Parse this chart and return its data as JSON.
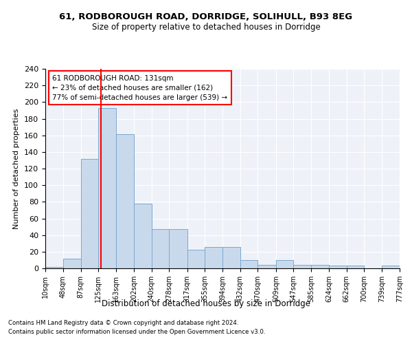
{
  "title1": "61, RODBOROUGH ROAD, DORRIDGE, SOLIHULL, B93 8EG",
  "title2": "Size of property relative to detached houses in Dorridge",
  "xlabel": "Distribution of detached houses by size in Dorridge",
  "ylabel": "Number of detached properties",
  "bar_values": [
    2,
    12,
    132,
    193,
    161,
    78,
    47,
    47,
    22,
    26,
    26,
    10,
    4,
    10,
    4,
    4,
    3,
    3,
    0,
    3
  ],
  "bin_edges": [
    10,
    48,
    87,
    125,
    163,
    202,
    240,
    278,
    317,
    355,
    394,
    432,
    470,
    509,
    547,
    585,
    624,
    662,
    700,
    739,
    777
  ],
  "tick_labels": [
    "10sqm",
    "48sqm",
    "87sqm",
    "125sqm",
    "163sqm",
    "202sqm",
    "240sqm",
    "278sqm",
    "317sqm",
    "355sqm",
    "394sqm",
    "432sqm",
    "470sqm",
    "509sqm",
    "547sqm",
    "585sqm",
    "624sqm",
    "662sqm",
    "700sqm",
    "739sqm",
    "777sqm"
  ],
  "bar_facecolor": "#c9d9ec",
  "bar_edgecolor": "#7aa8d0",
  "vline_x": 131,
  "vline_color": "red",
  "annotation_text": "61 RODBOROUGH ROAD: 131sqm\n← 23% of detached houses are smaller (162)\n77% of semi-detached houses are larger (539) →",
  "ylim": [
    0,
    240
  ],
  "yticks": [
    0,
    20,
    40,
    60,
    80,
    100,
    120,
    140,
    160,
    180,
    200,
    220,
    240
  ],
  "background_color": "#eef2f8",
  "grid_color": "#ffffff",
  "footer_line1": "Contains HM Land Registry data © Crown copyright and database right 2024.",
  "footer_line2": "Contains public sector information licensed under the Open Government Licence v3.0."
}
